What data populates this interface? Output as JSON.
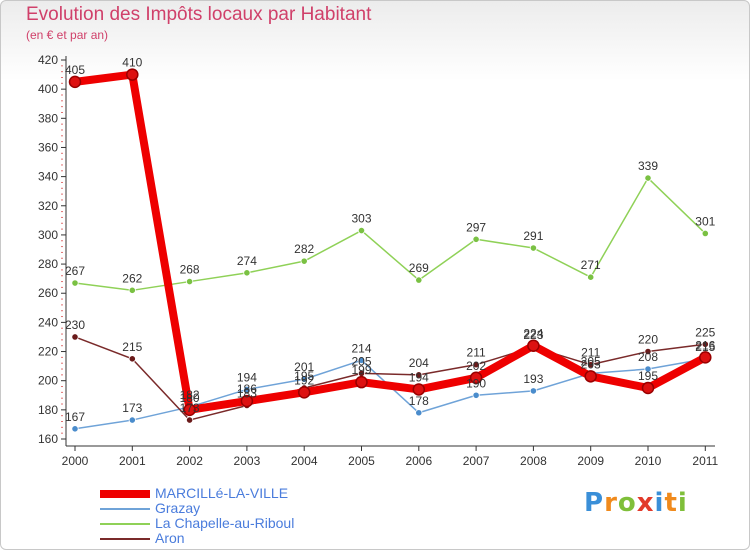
{
  "chart_data": {
    "type": "line",
    "title": "Evolution des Impôts locaux par Habitant",
    "subtitle": "(en € et par an)",
    "xlabel": "",
    "ylabel": "",
    "categories": [
      "2000",
      "2001",
      "2002",
      "2003",
      "2004",
      "2005",
      "2006",
      "2007",
      "2008",
      "2009",
      "2010",
      "2011"
    ],
    "ylim": [
      160,
      420
    ],
    "yticks": [
      160,
      180,
      200,
      220,
      240,
      260,
      280,
      300,
      320,
      340,
      360,
      380,
      400,
      420
    ],
    "grid": false,
    "series": [
      {
        "name": "La Chapelle-au-Riboul",
        "color": "#8fd157",
        "dot": "#7ac143",
        "values": [
          267,
          262,
          268,
          274,
          282,
          303,
          269,
          297,
          291,
          271,
          339,
          301
        ],
        "labels": [
          "267",
          "262",
          "268",
          "274",
          "282",
          "303",
          "269",
          "297",
          "291",
          "271",
          "339",
          "301"
        ]
      },
      {
        "name": "Grazay",
        "color": "#6fa3d8",
        "dot": "#4a8ccc",
        "values": [
          167,
          173,
          182,
          194,
          201,
          214,
          178,
          190,
          193,
          205,
          208,
          215
        ],
        "labels": [
          "167",
          "173",
          "182",
          "194",
          "201",
          "214",
          "178",
          "190",
          "193",
          "205",
          "208",
          "215"
        ]
      },
      {
        "name": "Aron",
        "color": "#7a2a2a",
        "dot": "#6a1a1a",
        "values": [
          230,
          215,
          173,
          183,
          195,
          205,
          204,
          211,
          223,
          211,
          220,
          225
        ],
        "labels": [
          "230",
          "215",
          "173",
          "183",
          "195",
          "205",
          "204",
          "211",
          "223",
          "211",
          "220",
          "225"
        ]
      },
      {
        "name": "MARCILLé-LA-VILLE",
        "color": "#ee0000",
        "dot": "#cc0000",
        "thick": true,
        "values": [
          405,
          410,
          180,
          186,
          192,
          199,
          194,
          202,
          224,
          203,
          195,
          216
        ],
        "labels": [
          "405",
          "410",
          "180",
          "186",
          "192",
          "199",
          "194",
          "202",
          "224",
          "203",
          "195",
          "216"
        ]
      }
    ],
    "legend_order": [
      "MARCILLé-LA-VILLE",
      "Grazay",
      "La Chapelle-au-Riboul",
      "Aron"
    ],
    "legend_position": "bottom-left"
  },
  "logo": {
    "letters": [
      "P",
      "r",
      "o",
      "x",
      "i",
      "t",
      "i"
    ],
    "colors": [
      "#3a8fd8",
      "#f08a1c",
      "#7fbf3a",
      "#e23a2a",
      "#3a8fd8",
      "#f08a1c",
      "#7fbf3a"
    ]
  }
}
